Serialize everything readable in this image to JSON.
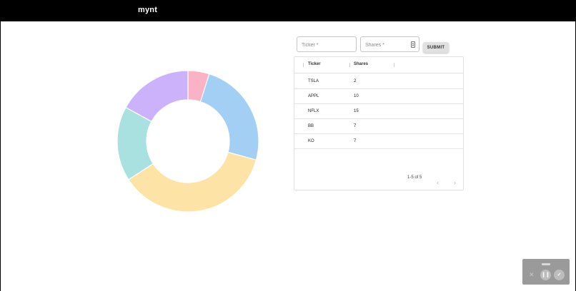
{
  "app": {
    "title": "mynt"
  },
  "form": {
    "ticker_placeholder": "Ticker *",
    "shares_placeholder": "Shares *",
    "submit_label": "SUBMIT"
  },
  "table": {
    "columns": [
      "Ticker",
      "Shares"
    ],
    "rows": [
      {
        "ticker": "TSLA",
        "shares": "2"
      },
      {
        "ticker": "APPL",
        "shares": "10"
      },
      {
        "ticker": "NFLX",
        "shares": "15"
      },
      {
        "ticker": "BB",
        "shares": "7"
      },
      {
        "ticker": "KO",
        "shares": "7"
      }
    ],
    "pagination_text": "1-5 of 5",
    "prev_icon": "chevron-left-icon",
    "next_icon": "chevron-right-icon"
  },
  "chart_data": {
    "type": "pie",
    "donut": true,
    "categories": [
      "TSLA",
      "APPL",
      "NFLX",
      "BB",
      "KO"
    ],
    "values": [
      2,
      10,
      15,
      7,
      7
    ],
    "colors": [
      "#fab3c4",
      "#a3cff4",
      "#fde4a6",
      "#a9e0e0",
      "#cbb2fa"
    ],
    "start_angle_deg": 0
  },
  "recorder": {
    "icons": [
      "close-icon",
      "pause-icon",
      "check-icon"
    ]
  }
}
